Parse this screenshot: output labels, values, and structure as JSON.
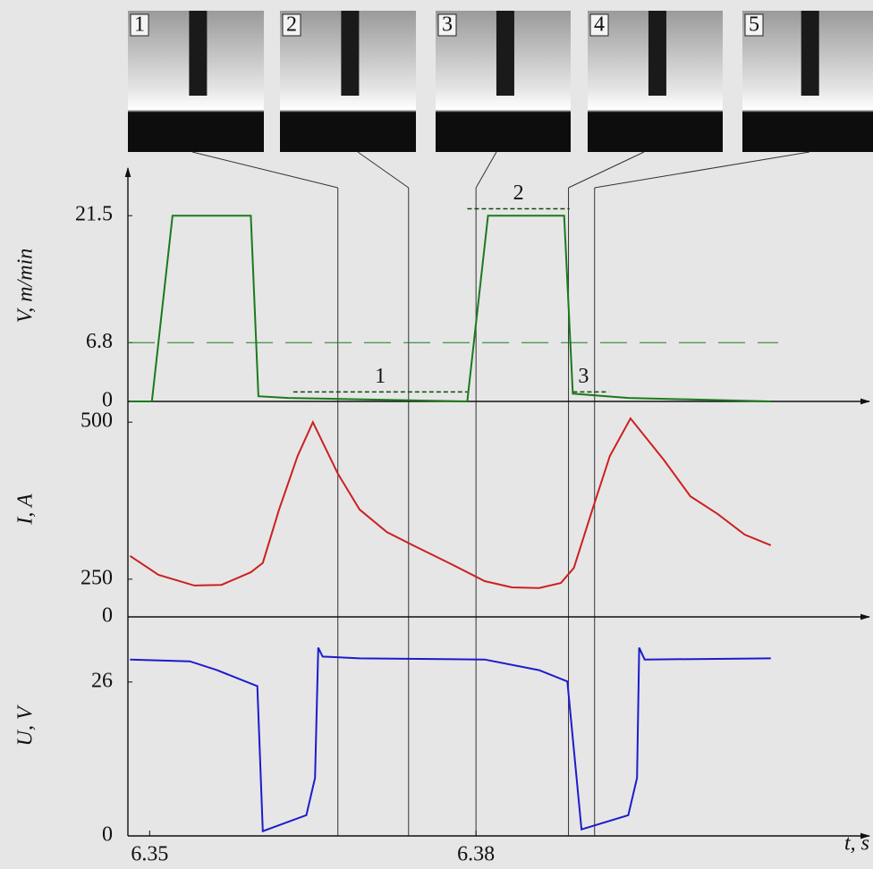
{
  "frames": [
    {
      "label": "1",
      "t": 6.3673
    },
    {
      "label": "2",
      "t": 6.3738
    },
    {
      "label": "3",
      "t": 6.38
    },
    {
      "label": "4",
      "t": 6.3885
    },
    {
      "label": "5",
      "t": 6.3909
    }
  ],
  "chart_data": [
    {
      "type": "line",
      "y_label": "V, m/min",
      "xlim": [
        6.348,
        6.416
      ],
      "ylim": [
        0,
        26.8
      ],
      "yticks": [
        0,
        6.8,
        21.5
      ],
      "reference_line": 6.8,
      "x": [
        6.3482,
        6.3502,
        6.3521,
        6.3593,
        6.36,
        6.3627,
        6.3792,
        6.3811,
        6.3881,
        6.3889,
        6.394,
        6.4071
      ],
      "series": [
        {
          "color": "#1b7a1b",
          "values": [
            0,
            0,
            21.5,
            21.5,
            0.6,
            0.4,
            0,
            21.5,
            21.5,
            0.9,
            0.4,
            0
          ]
        }
      ],
      "annotations": [
        {
          "label": "1",
          "x": [
            6.3632,
            6.3792
          ],
          "y": 1.1
        },
        {
          "label": "2",
          "x": [
            6.3792,
            6.3886
          ],
          "y": 22.3
        },
        {
          "label": "3",
          "x": [
            6.3889,
            6.3922
          ],
          "y": 1.1
        }
      ]
    },
    {
      "type": "line",
      "y_label": "I, A",
      "xlim": [
        6.348,
        6.416
      ],
      "ylim": [
        190,
        533
      ],
      "yticks": [
        250,
        500
      ],
      "baseline_label": "0",
      "x": [
        6.3482,
        6.3508,
        6.3541,
        6.3566,
        6.3593,
        6.3604,
        6.3619,
        6.3636,
        6.365,
        6.3673,
        6.3693,
        6.3718,
        6.3742,
        6.3775,
        6.3808,
        6.3833,
        6.3858,
        6.3878,
        6.389,
        6.3907,
        6.3923,
        6.3942,
        6.3973,
        6.3997,
        6.4022,
        6.4047,
        6.4071
      ],
      "series": [
        {
          "color": "#cc2020",
          "values": [
            287,
            257,
            240,
            241,
            261,
            276,
            361,
            446,
            500,
            418,
            361,
            325,
            304,
            276,
            247,
            237,
            236,
            244,
            268,
            361,
            446,
            506,
            439,
            382,
            354,
            321,
            304
          ]
        }
      ]
    },
    {
      "type": "line",
      "y_label": "U, V",
      "x_label": "t, s",
      "xlim": [
        6.348,
        6.416
      ],
      "ylim": [
        0,
        37
      ],
      "yticks": [
        0,
        26
      ],
      "xticks": [
        6.35,
        6.38
      ],
      "x": [
        6.3482,
        6.3537,
        6.3562,
        6.3599,
        6.3604,
        6.3644,
        6.3652,
        6.3655,
        6.3659,
        6.3693,
        6.3808,
        6.3858,
        6.3884,
        6.3897,
        6.394,
        6.3948,
        6.395,
        6.3955,
        6.4071
      ],
      "series": [
        {
          "color": "#1c1ccc",
          "values": [
            29.8,
            29.5,
            28.0,
            25.3,
            0.8,
            3.5,
            9.8,
            31.8,
            30.3,
            30.0,
            29.8,
            28.0,
            26.1,
            1.1,
            3.5,
            9.8,
            31.8,
            29.8,
            30.0
          ]
        }
      ]
    }
  ]
}
